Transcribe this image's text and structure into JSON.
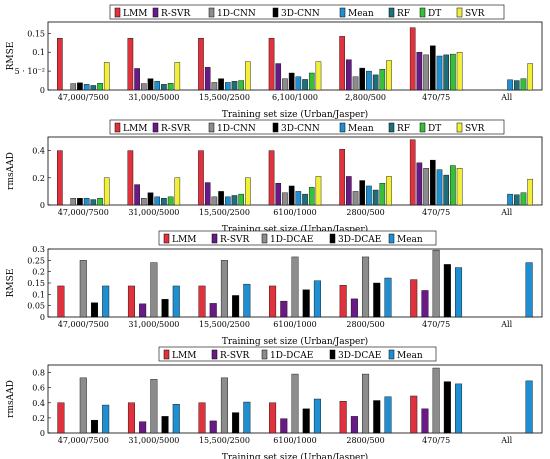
{
  "figure": {
    "xlabel": "Training set size (Urban/Jasper)"
  },
  "colors": {
    "LMM": "#e0323c",
    "R-SVR": "#6a1a86",
    "1D-CNN": "#8c8c8c",
    "3D-CNN": "#000000",
    "Mean": "#1f8fd2",
    "RF": "#1f6f7a",
    "DT": "#36c03a",
    "SVR": "#f2ef3a",
    "1D-DCAE": "#8c8c8c",
    "3D-DCAE": "#000000"
  },
  "chart_data": [
    {
      "type": "bar",
      "ylabel": "RMSE",
      "xlabel": "Training set size (Urban/Jasper)",
      "ylim": [
        0,
        0.18
      ],
      "yticks": [
        0,
        0.05,
        0.1,
        0.15
      ],
      "ytick_labels": [
        "0",
        "5 · 10⁻²",
        "0.1",
        "0.15"
      ],
      "categories": [
        "47,000/7500",
        "31,000/5000",
        "15,500/2500",
        "6,100/1000",
        "2,800/500",
        "470/75",
        "All"
      ],
      "series": [
        {
          "name": "LMM",
          "values": [
            0.137,
            0.137,
            0.137,
            0.137,
            0.142,
            0.165,
            null
          ]
        },
        {
          "name": "R-SVR",
          "values": [
            0.0,
            0.057,
            0.06,
            0.07,
            0.08,
            0.1,
            null
          ]
        },
        {
          "name": "1D-CNN",
          "values": [
            0.017,
            0.017,
            0.02,
            0.03,
            0.035,
            0.093,
            0.0
          ]
        },
        {
          "name": "3D-CNN",
          "values": [
            0.019,
            0.03,
            0.03,
            0.045,
            0.058,
            0.117,
            null
          ]
        },
        {
          "name": "Mean",
          "values": [
            0.015,
            0.023,
            0.02,
            0.035,
            0.05,
            0.09,
            0.027
          ]
        },
        {
          "name": "RF",
          "values": [
            0.012,
            0.015,
            0.023,
            0.028,
            0.04,
            0.093,
            0.025
          ]
        },
        {
          "name": "DT",
          "values": [
            0.018,
            0.018,
            0.025,
            0.045,
            0.055,
            0.095,
            0.03
          ]
        },
        {
          "name": "SVR",
          "values": [
            0.073,
            0.073,
            0.075,
            0.075,
            0.078,
            0.1,
            0.07
          ]
        }
      ]
    },
    {
      "type": "bar",
      "ylabel": "rmsAAD",
      "xlabel": "Training set size (Urban/Jasper)",
      "ylim": [
        0,
        0.5
      ],
      "yticks": [
        0,
        0.2,
        0.4
      ],
      "ytick_labels": [
        "0",
        "0.2",
        "0.4"
      ],
      "categories": [
        "47,000/7500",
        "31,000/5000",
        "15,500/2500",
        "6100/1000",
        "2800/500",
        "470/75",
        "All"
      ],
      "series": [
        {
          "name": "LMM",
          "values": [
            0.4,
            0.4,
            0.4,
            0.4,
            0.41,
            0.48,
            null
          ]
        },
        {
          "name": "R-SVR",
          "values": [
            0.0,
            0.15,
            0.165,
            0.16,
            0.21,
            0.31,
            null
          ]
        },
        {
          "name": "1D-CNN",
          "values": [
            0.05,
            0.05,
            0.06,
            0.09,
            0.1,
            0.27,
            0.0
          ]
        },
        {
          "name": "3D-CNN",
          "values": [
            0.05,
            0.09,
            0.1,
            0.14,
            0.18,
            0.33,
            null
          ]
        },
        {
          "name": "Mean",
          "values": [
            0.05,
            0.06,
            0.06,
            0.1,
            0.14,
            0.26,
            0.08
          ]
        },
        {
          "name": "RF",
          "values": [
            0.04,
            0.05,
            0.07,
            0.08,
            0.11,
            0.22,
            0.075
          ]
        },
        {
          "name": "DT",
          "values": [
            0.05,
            0.06,
            0.08,
            0.13,
            0.16,
            0.29,
            0.09
          ]
        },
        {
          "name": "SVR",
          "values": [
            0.2,
            0.2,
            0.2,
            0.21,
            0.21,
            0.27,
            0.19
          ]
        }
      ]
    },
    {
      "type": "bar",
      "ylabel": "RMSE",
      "xlabel": "Training set size (Urban/Jasper)",
      "ylim": [
        0,
        0.3
      ],
      "yticks": [
        0,
        0.05,
        0.1,
        0.15,
        0.2,
        0.25,
        0.3
      ],
      "ytick_labels": [
        "0",
        "0.05",
        "0.1",
        "0.15",
        "0.2",
        "0.25",
        "0.3"
      ],
      "categories": [
        "47,000/7500",
        "31,000/5000",
        "15,500/2500",
        "6100/1000",
        "2800/500",
        "470/75",
        "All"
      ],
      "series": [
        {
          "name": "LMM",
          "values": [
            0.137,
            0.137,
            0.137,
            0.137,
            0.14,
            0.165,
            null
          ]
        },
        {
          "name": "R-SVR",
          "values": [
            0.0,
            0.058,
            0.06,
            0.07,
            0.08,
            0.117,
            null
          ]
        },
        {
          "name": "1D-DCAE",
          "values": [
            0.25,
            0.24,
            0.25,
            0.265,
            0.265,
            0.295,
            0.0
          ]
        },
        {
          "name": "3D-DCAE",
          "values": [
            0.063,
            0.078,
            0.095,
            0.12,
            0.15,
            0.232,
            null
          ]
        },
        {
          "name": "Mean",
          "values": [
            0.137,
            0.137,
            0.145,
            0.16,
            0.172,
            0.218,
            0.24
          ]
        }
      ]
    },
    {
      "type": "bar",
      "ylabel": "rmsAAD",
      "xlabel": "Training set size (Urban/Jasper)",
      "ylim": [
        0,
        0.9
      ],
      "yticks": [
        0,
        0.2,
        0.4,
        0.6,
        0.8
      ],
      "ytick_labels": [
        "0",
        "0.2",
        "0.4",
        "0.6",
        "0.8"
      ],
      "categories": [
        "47,000/7500",
        "31,000/5000",
        "15,500/2500",
        "6100/1000",
        "2800/500",
        "470/75",
        "All"
      ],
      "series": [
        {
          "name": "LMM",
          "values": [
            0.4,
            0.4,
            0.4,
            0.4,
            0.42,
            0.49,
            null
          ]
        },
        {
          "name": "R-SVR",
          "values": [
            0.0,
            0.15,
            0.16,
            0.19,
            0.22,
            0.32,
            null
          ]
        },
        {
          "name": "1D-DCAE",
          "values": [
            0.73,
            0.71,
            0.73,
            0.78,
            0.78,
            0.86,
            0.0
          ]
        },
        {
          "name": "3D-DCAE",
          "values": [
            0.17,
            0.22,
            0.27,
            0.32,
            0.43,
            0.68,
            null
          ]
        },
        {
          "name": "Mean",
          "values": [
            0.37,
            0.38,
            0.41,
            0.45,
            0.48,
            0.65,
            0.69
          ]
        }
      ]
    }
  ]
}
